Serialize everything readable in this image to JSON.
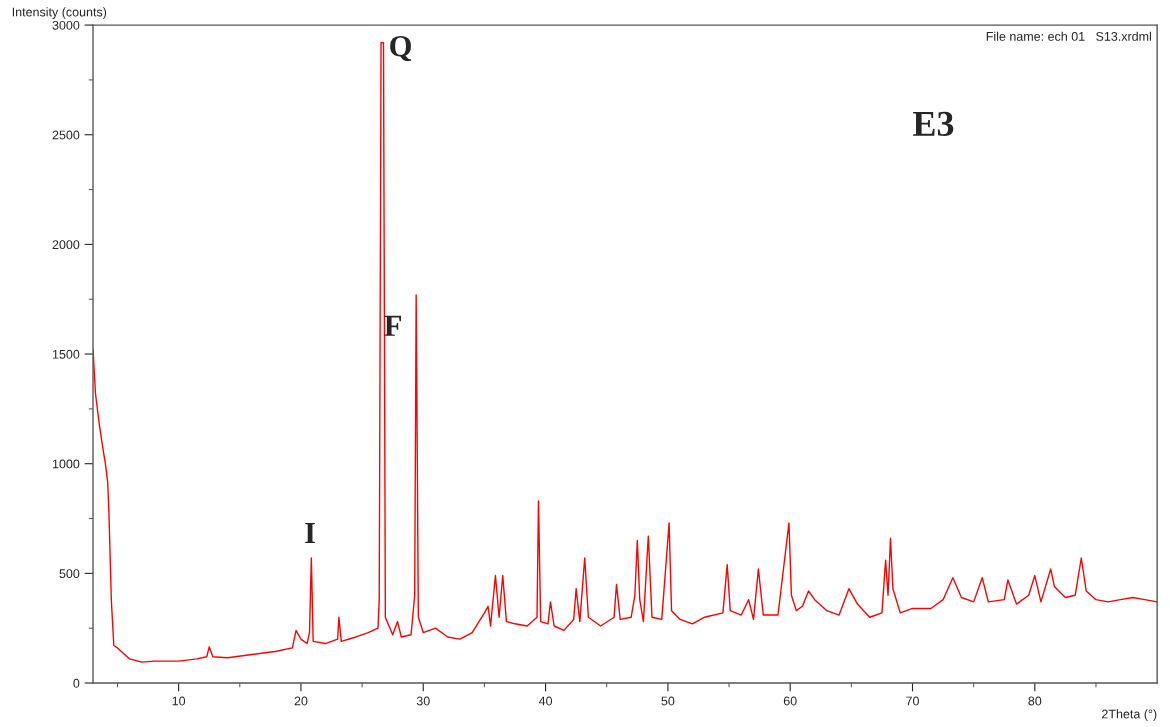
{
  "chart_data": {
    "type": "line",
    "xlabel": "2Theta (°)",
    "ylabel": "Intensity (counts)",
    "x": [
      3.0,
      3.2,
      3.5,
      3.8,
      4.0,
      4.2,
      4.3,
      4.5,
      4.7,
      5.0,
      6.0,
      7.0,
      8.0,
      10.0,
      11.5,
      12.3,
      12.5,
      12.8,
      14,
      16,
      18,
      19.3,
      19.6,
      20.0,
      20.5,
      20.7,
      20.85,
      21.0,
      22,
      23.0,
      23.1,
      23.3,
      24.5,
      25.5,
      26.3,
      26.4,
      26.55,
      26.75,
      26.9,
      27.5,
      27.9,
      28.2,
      29.0,
      29.3,
      29.42,
      29.6,
      30,
      31,
      32,
      33,
      34,
      35.0,
      35.3,
      35.5,
      35.9,
      36.2,
      36.5,
      36.8,
      37.5,
      38.5,
      39.3,
      39.42,
      39.6,
      40.2,
      40.4,
      40.7,
      41.5,
      42.3,
      42.5,
      42.8,
      43.2,
      43.5,
      44.5,
      45.6,
      45.8,
      46.1,
      47,
      47.3,
      47.5,
      47.7,
      48,
      48.4,
      48.7,
      49.5,
      50.1,
      50.3,
      51,
      52,
      53,
      54.5,
      54.85,
      55.1,
      56,
      56.6,
      57,
      57.4,
      57.8,
      59,
      59.9,
      60.1,
      60.5,
      61,
      61.5,
      62,
      63,
      64,
      64.8,
      65.5,
      66.5,
      67.5,
      67.8,
      68.0,
      68.2,
      68.4,
      69,
      70,
      71.5,
      72.5,
      73.3,
      74,
      75,
      75.7,
      76.2,
      77.5,
      77.8,
      78.5,
      79.5,
      80.0,
      80.5,
      81.3,
      81.6,
      82.5,
      83.3,
      83.8,
      84.2,
      85,
      86,
      87,
      88,
      89,
      90
    ],
    "series": [
      {
        "color": "#ff0000",
        "values": [
          1523,
          1320,
          1185,
          1072,
          1005,
          915,
          780,
          374,
          171,
          160,
          110,
          95,
          100,
          100,
          110,
          120,
          165,
          120,
          115,
          130,
          145,
          160,
          240,
          200,
          180,
          230,
          570,
          190,
          180,
          200,
          300,
          190,
          210,
          230,
          250,
          380,
          2920,
          2920,
          300,
          220,
          280,
          210,
          220,
          400,
          1770,
          300,
          230,
          250,
          210,
          200,
          230,
          320,
          350,
          260,
          490,
          300,
          490,
          280,
          270,
          260,
          300,
          830,
          280,
          270,
          370,
          260,
          240,
          290,
          430,
          280,
          570,
          300,
          260,
          300,
          450,
          290,
          300,
          400,
          650,
          380,
          280,
          670,
          300,
          290,
          730,
          330,
          290,
          270,
          300,
          320,
          540,
          330,
          310,
          380,
          290,
          520,
          310,
          310,
          730,
          400,
          330,
          350,
          420,
          380,
          330,
          310,
          430,
          360,
          300,
          320,
          560,
          400,
          660,
          430,
          320,
          340,
          340,
          380,
          480,
          390,
          370,
          480,
          370,
          380,
          470,
          360,
          400,
          490,
          370,
          520,
          440,
          390,
          400,
          570,
          420,
          380,
          370,
          380,
          390,
          380,
          370
        ]
      }
    ],
    "xlim": [
      3,
      90
    ],
    "ylim": [
      0,
      3000
    ],
    "xticks": [
      {
        "value": 5,
        "label": null
      },
      10,
      {
        "value": 15,
        "label": null
      },
      20,
      {
        "value": 25,
        "label": null
      },
      30,
      {
        "value": 35,
        "label": null
      },
      40,
      {
        "value": 45,
        "label": null
      },
      50,
      {
        "value": 55,
        "label": null
      },
      60,
      {
        "value": 65,
        "label": null
      },
      70,
      {
        "value": 75,
        "label": null
      },
      80,
      {
        "value": 85,
        "label": null
      }
    ],
    "yticks": [
      0,
      {
        "value": 250,
        "label": null
      },
      500,
      {
        "value": 750,
        "label": null
      },
      1000,
      {
        "value": 1250,
        "label": null
      },
      1500,
      {
        "value": 1750,
        "label": null
      },
      2000,
      {
        "value": 2250,
        "label": null
      },
      2500,
      {
        "value": 2750,
        "label": null
      },
      3000
    ],
    "annotations": [
      "Q",
      "F",
      "I",
      "E3",
      "File name: ech 01   S13.xrdml"
    ],
    "grid": false,
    "line_style": "solid",
    "marker": "none"
  }
}
